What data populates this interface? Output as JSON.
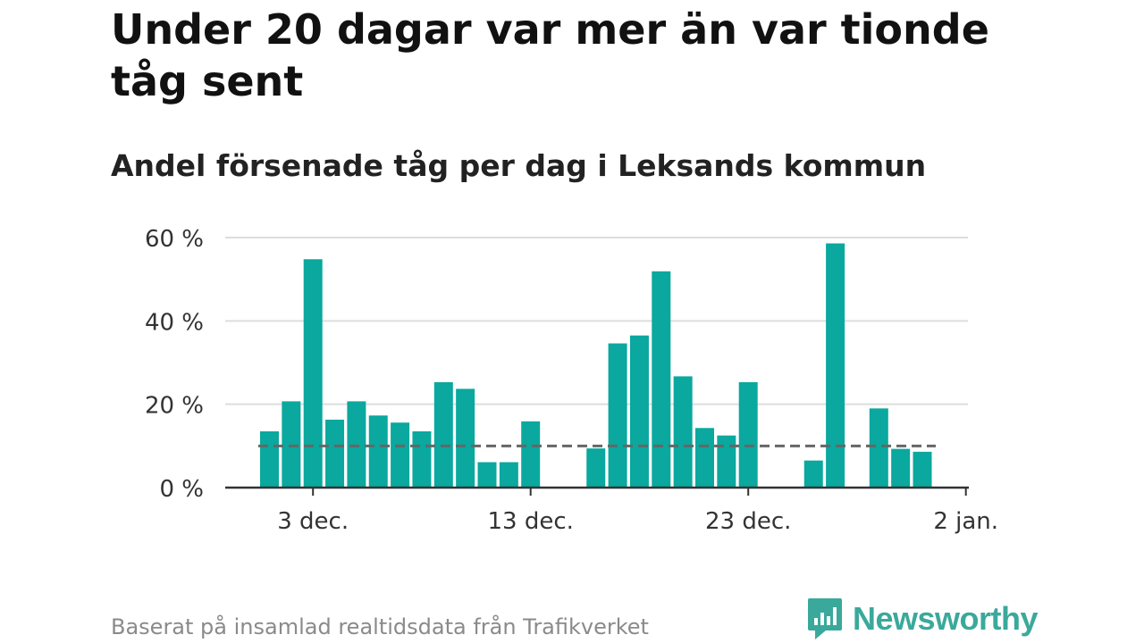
{
  "title": "Under 20 dagar var mer än var tionde tåg sent",
  "subtitle": "Andel försenade tåg per dag i Leksands kommun",
  "footer": "Baserat på insamlad realtidsdata från Trafikverket",
  "brand": {
    "name": "Newsworthy",
    "icon": "newsworthy-logo-icon",
    "color": "#3aa99b"
  },
  "colors": {
    "bar": "#0aa89e",
    "reference": "#666666",
    "grid": "#dddddd",
    "axis": "#333333"
  },
  "chart_data": {
    "type": "bar",
    "x_tick_labels": [
      "3 dec.",
      "13 dec.",
      "23 dec.",
      "2 jan."
    ],
    "y_tick_labels": [
      "0 %",
      "20 %",
      "40 %",
      "60 %"
    ],
    "yticks": [
      0,
      20,
      40,
      60
    ],
    "ylim": [
      0,
      60
    ],
    "reference_line": 10,
    "grid": true,
    "categories": [
      "2024-12-01",
      "2024-12-02",
      "2024-12-03",
      "2024-12-04",
      "2024-12-05",
      "2024-12-06",
      "2024-12-07",
      "2024-12-08",
      "2024-12-09",
      "2024-12-10",
      "2024-12-11",
      "2024-12-12",
      "2024-12-13",
      "2024-12-14",
      "2024-12-15",
      "2024-12-16",
      "2024-12-17",
      "2024-12-18",
      "2024-12-19",
      "2024-12-20",
      "2024-12-21",
      "2024-12-22",
      "2024-12-23",
      "2024-12-24",
      "2024-12-25",
      "2024-12-26",
      "2024-12-27",
      "2024-12-28",
      "2024-12-29",
      "2024-12-30",
      "2024-12-31",
      "2025-01-01"
    ],
    "values": [
      13.5,
      20.7,
      54.8,
      16.3,
      20.7,
      17.3,
      15.6,
      13.5,
      25.3,
      23.7,
      6.1,
      6.1,
      15.9,
      null,
      null,
      9.4,
      34.6,
      36.5,
      51.9,
      26.7,
      14.3,
      12.5,
      25.3,
      null,
      null,
      6.5,
      58.6,
      null,
      19.0,
      9.3,
      8.6,
      null
    ]
  }
}
